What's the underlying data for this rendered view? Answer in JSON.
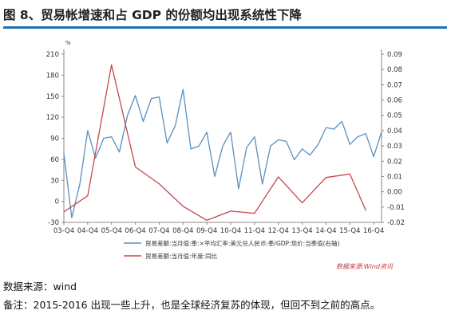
{
  "title": "图 8、贸易帐增速和占 GDP 的份额均出现系统性下降",
  "chart_data": {
    "type": "line",
    "x_ticks": [
      "03-Q4",
      "04-Q4",
      "05-Q4",
      "06-Q4",
      "07-Q4",
      "08-Q4",
      "09-Q4",
      "10-Q4",
      "11-Q4",
      "12-Q4",
      "13-Q4",
      "14-Q4",
      "15-Q4",
      "16-Q4"
    ],
    "left_axis": {
      "ylim": [
        -30,
        210
      ],
      "ticks": [
        -30,
        0,
        30,
        60,
        90,
        120,
        150,
        180,
        210
      ],
      "unit": "%"
    },
    "right_axis": {
      "ylim": [
        -0.02,
        0.09
      ],
      "ticks": [
        -0.02,
        -0.01,
        0.0,
        0.01,
        0.02,
        0.03,
        0.04,
        0.05,
        0.06,
        0.07,
        0.08,
        0.09
      ],
      "labels": [
        "-0.02",
        "-0.01",
        "0.00",
        "0.01",
        "0.02",
        "0.03",
        "0.04",
        "0.05",
        "0.06",
        "0.07",
        "0.08",
        "0.09"
      ]
    },
    "series": [
      {
        "name": "贸易差额:当月值:季:×平均汇率:美元兑人民币:季/GDP:现价:当季值(右轴)",
        "axis": "right",
        "color": "#5b8fbf",
        "x": [
          0,
          0.33,
          0.67,
          1,
          1.33,
          1.67,
          2,
          2.33,
          2.67,
          3,
          3.33,
          3.67,
          4,
          4.33,
          4.67,
          5,
          5.33,
          5.67,
          6,
          6.33,
          6.67,
          7,
          7.33,
          7.67,
          8,
          8.33,
          8.67,
          9,
          9.33,
          9.67,
          10,
          10.33,
          10.67,
          11,
          11.33,
          11.67,
          12,
          12.33,
          12.67,
          13,
          13.33
        ],
        "values": [
          0.025,
          -0.017,
          0.005,
          0.04,
          0.022,
          0.035,
          0.036,
          0.026,
          0.05,
          0.063,
          0.046,
          0.061,
          0.062,
          0.032,
          0.043,
          0.067,
          0.028,
          0.03,
          0.039,
          0.01,
          0.03,
          0.039,
          0.002,
          0.029,
          0.036,
          0.005,
          0.03,
          0.034,
          0.033,
          0.021,
          0.028,
          0.024,
          0.031,
          0.042,
          0.041,
          0.046,
          0.031,
          0.036,
          0.038,
          0.023,
          0.039
        ]
      },
      {
        "name": "贸易差额:当月值:年度:同比",
        "axis": "left",
        "color": "#c5474c",
        "x": [
          0,
          1,
          2,
          3,
          4,
          5,
          6,
          7,
          8,
          9,
          10,
          11,
          12,
          12.67
        ],
        "values": [
          -15,
          8,
          195,
          49,
          25,
          -7,
          -27,
          -14,
          -17,
          35,
          -2,
          34,
          39,
          -13
        ]
      }
    ]
  },
  "legend": {
    "blue": "贸易差额:当月值:季:×平均汇率:美元兑人民币:季/GDP:现价:当季值(右轴)",
    "red": "贸易差额:当月值:年度:同比"
  },
  "source_stamp": "数据来源:Wind资讯",
  "footnote_source": "数据来源：wind",
  "footnote_remark": "备注：2015-2016 出现一些上升，也是全球经济复苏的体现，但回不到之前的高点。"
}
